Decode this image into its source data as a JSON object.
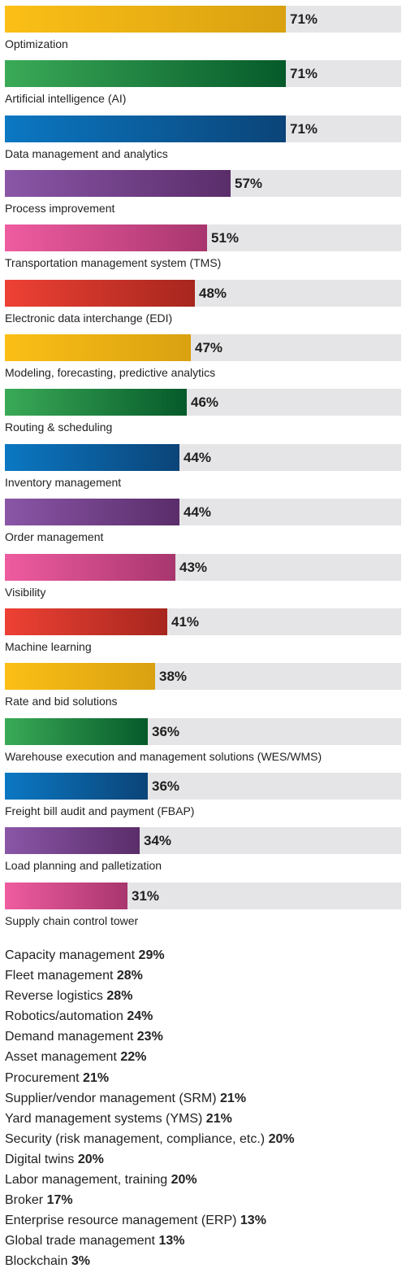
{
  "chart_data": {
    "type": "bar",
    "orientation": "horizontal",
    "value_suffix": "%",
    "xlim": [
      0,
      100
    ],
    "bars": [
      {
        "label": "Optimization",
        "value": 71,
        "value_label": "71%",
        "color": "yellow"
      },
      {
        "label": "Artificial intelligence (AI)",
        "value": 71,
        "value_label": "71%",
        "color": "green"
      },
      {
        "label": "Data management and analytics",
        "value": 71,
        "value_label": "71%",
        "color": "blue"
      },
      {
        "label": "Process improvement",
        "value": 57,
        "value_label": "57%",
        "color": "purple"
      },
      {
        "label": "Transportation management system (TMS)",
        "value": 51,
        "value_label": "51%",
        "color": "pink"
      },
      {
        "label": "Electronic data interchange (EDI)",
        "value": 48,
        "value_label": "48%",
        "color": "red"
      },
      {
        "label": "Modeling, forecasting, predictive analytics",
        "value": 47,
        "value_label": "47%",
        "color": "yellow"
      },
      {
        "label": "Routing & scheduling",
        "value": 46,
        "value_label": "46%",
        "color": "green"
      },
      {
        "label": "Inventory management",
        "value": 44,
        "value_label": "44%",
        "color": "blue"
      },
      {
        "label": "Order management",
        "value": 44,
        "value_label": "44%",
        "color": "purple"
      },
      {
        "label": "Visibility",
        "value": 43,
        "value_label": "43%",
        "color": "pink"
      },
      {
        "label": "Machine learning",
        "value": 41,
        "value_label": "41%",
        "color": "red"
      },
      {
        "label": "Rate and bid solutions",
        "value": 38,
        "value_label": "38%",
        "color": "yellow"
      },
      {
        "label": "Warehouse execution and management solutions (WES/WMS)",
        "value": 36,
        "value_label": "36%",
        "color": "green"
      },
      {
        "label": "Freight bill audit and payment (FBAP)",
        "value": 36,
        "value_label": "36%",
        "color": "blue"
      },
      {
        "label": "Load planning and palletization",
        "value": 34,
        "value_label": "34%",
        "color": "purple"
      },
      {
        "label": "Supply chain control tower",
        "value": 31,
        "value_label": "31%",
        "color": "pink"
      }
    ],
    "other_items": [
      {
        "label": "Capacity management",
        "value": 29,
        "value_label": "29%"
      },
      {
        "label": "Fleet management",
        "value": 28,
        "value_label": "28%"
      },
      {
        "label": "Reverse logistics",
        "value": 28,
        "value_label": "28%"
      },
      {
        "label": "Robotics/automation",
        "value": 24,
        "value_label": "24%"
      },
      {
        "label": "Demand management",
        "value": 23,
        "value_label": "23%"
      },
      {
        "label": "Asset management",
        "value": 22,
        "value_label": "22%"
      },
      {
        "label": "Procurement",
        "value": 21,
        "value_label": "21%"
      },
      {
        "label": "Supplier/vendor management (SRM)",
        "value": 21,
        "value_label": "21%"
      },
      {
        "label": "Yard management systems (YMS)",
        "value": 21,
        "value_label": "21%"
      },
      {
        "label": "Security (risk management, compliance, etc.)",
        "value": 20,
        "value_label": "20%"
      },
      {
        "label": "Digital twins",
        "value": 20,
        "value_label": "20%"
      },
      {
        "label": "Labor management, training",
        "value": 20,
        "value_label": "20%"
      },
      {
        "label": "Broker",
        "value": 17,
        "value_label": "17%"
      },
      {
        "label": "Enterprise resource management (ERP)",
        "value": 13,
        "value_label": "13%"
      },
      {
        "label": "Global trade management",
        "value": 13,
        "value_label": "13%"
      },
      {
        "label": "Blockchain",
        "value": 3,
        "value_label": "3%"
      }
    ],
    "colors": {
      "yellow": [
        "#fbbf16",
        "#d9a111"
      ],
      "green": [
        "#3aaa57",
        "#065a2a"
      ],
      "blue": [
        "#0b78c3",
        "#0b4478"
      ],
      "purple": [
        "#8a56a7",
        "#5a2d6a"
      ],
      "pink": [
        "#ef5ca0",
        "#a8366e"
      ],
      "red": [
        "#ee4134",
        "#a6261e"
      ],
      "track": "#e5e5e7"
    }
  }
}
